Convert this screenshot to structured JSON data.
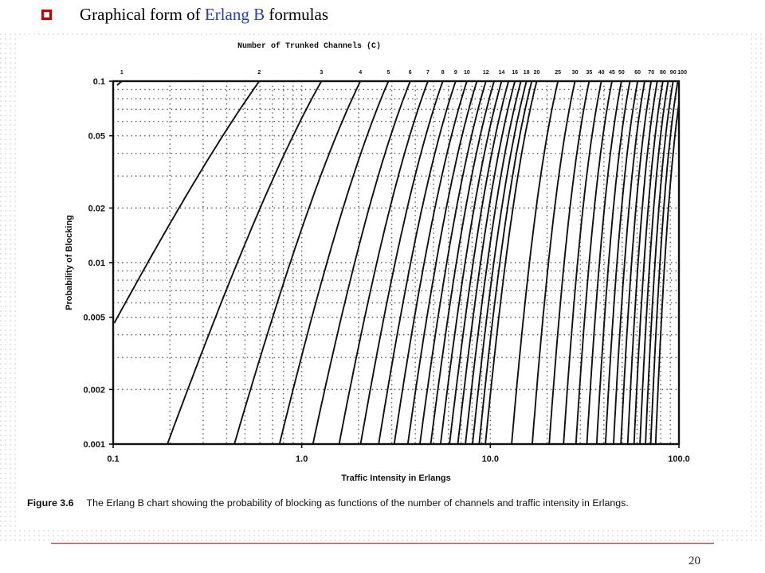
{
  "slide": {
    "title_prefix": "Graphical form of ",
    "title_highlight": "Erlang B",
    "title_suffix": " formulas",
    "page_number": "20",
    "colors": {
      "accent": "#c00000",
      "highlight": "#1f3fc8",
      "rule": "#b22222"
    }
  },
  "figure": {
    "caption_label": "Figure 3.6",
    "caption_text": "The Erlang B chart showing the probability of blocking as functions of the number of channels and traffic intensity in Erlangs."
  },
  "chart_data": {
    "type": "line",
    "title": "Number of Trunked Channels    (C)",
    "xlabel": "Traffic Intensity in Erlangs",
    "ylabel": "Probability of Blocking",
    "x_scale": "log",
    "y_scale": "log",
    "xlim": [
      0.1,
      100
    ],
    "ylim": [
      0.001,
      0.1
    ],
    "x_ticks": [
      {
        "value": 0.1,
        "label": "0.1"
      },
      {
        "value": 1,
        "label": "1.0"
      },
      {
        "value": 10,
        "label": "10.0"
      },
      {
        "value": 100,
        "label": "100.0"
      }
    ],
    "y_ticks": [
      {
        "value": 0.1,
        "label": "0.1"
      },
      {
        "value": 0.05,
        "label": "0.05"
      },
      {
        "value": 0.02,
        "label": "0.02"
      },
      {
        "value": 0.01,
        "label": "0.01"
      },
      {
        "value": 0.005,
        "label": "0.005"
      },
      {
        "value": 0.002,
        "label": "0.002"
      },
      {
        "value": 0.001,
        "label": "0.001"
      }
    ],
    "grid": true,
    "channel_labels": [
      "1",
      "2",
      "3",
      "4",
      "5",
      "6",
      "7",
      "8",
      "9",
      "10",
      "12",
      "14",
      "16",
      "18",
      "20",
      "25",
      "30",
      "35",
      "40",
      "45",
      "50",
      "60",
      "70",
      "80",
      "90",
      "100"
    ],
    "series_channels": [
      1,
      2,
      3,
      4,
      5,
      6,
      7,
      8,
      9,
      10,
      11,
      12,
      13,
      14,
      15,
      16,
      17,
      18,
      19,
      20,
      25,
      30,
      35,
      40,
      45,
      50,
      55,
      60,
      65,
      70,
      75,
      80,
      85,
      90,
      95,
      100
    ]
  }
}
